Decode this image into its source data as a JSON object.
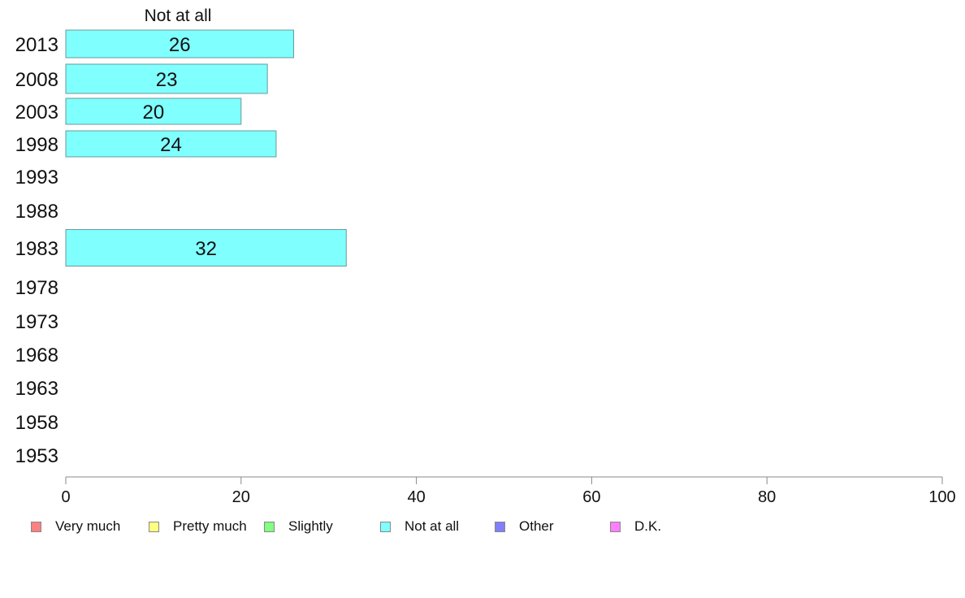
{
  "chart_data": {
    "type": "bar",
    "orientation": "horizontal",
    "series_title": "Not at all",
    "categories": [
      "2013",
      "2008",
      "2003",
      "1998",
      "1993",
      "1988",
      "1983",
      "1978",
      "1973",
      "1968",
      "1963",
      "1958",
      "1953"
    ],
    "series": [
      {
        "name": "Not at all",
        "color": "#80ffff",
        "values": [
          26,
          23,
          20,
          24,
          null,
          null,
          32,
          null,
          null,
          null,
          null,
          null,
          null
        ]
      }
    ],
    "xlim": [
      0,
      100
    ],
    "xticks": [
      "0",
      "20",
      "40",
      "60",
      "80",
      "100"
    ],
    "legend": {
      "placement": "bottom",
      "items": [
        {
          "label": "Very much",
          "color": "#ff8080"
        },
        {
          "label": "Pretty much",
          "color": "#ffff80"
        },
        {
          "label": "Slightly",
          "color": "#80ff80"
        },
        {
          "label": "Not at all",
          "color": "#80ffff"
        },
        {
          "label": "Other",
          "color": "#8080ff"
        },
        {
          "label": "D.K.",
          "color": "#ff80ff"
        }
      ]
    },
    "grid": false
  }
}
